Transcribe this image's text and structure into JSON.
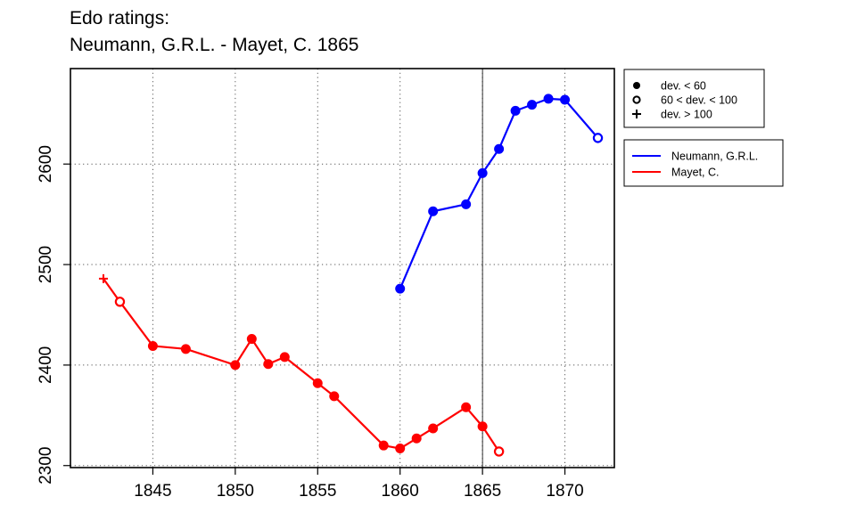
{
  "title_line1": "Edo ratings:",
  "title_line2": "Neumann, G.R.L. - Mayet, C. 1865",
  "chart_data": {
    "type": "line",
    "title": "Edo ratings:\nNeumann, G.R.L. - Mayet, C. 1865",
    "xlabel": "",
    "ylabel": "",
    "xlim": [
      1840,
      1873
    ],
    "ylim": [
      2298,
      2695
    ],
    "x_ticks": [
      1845,
      1850,
      1855,
      1860,
      1865,
      1870
    ],
    "y_ticks": [
      2300,
      2400,
      2500,
      2600
    ],
    "grid": true,
    "vline": 1865,
    "marker_legend": [
      {
        "label": "dev. < 60",
        "marker": "filled-circle"
      },
      {
        "label": "60 < dev. < 100",
        "marker": "open-circle"
      },
      {
        "label": "dev. > 100",
        "marker": "plus"
      }
    ],
    "series": [
      {
        "name": "Neumann, G.R.L.",
        "color": "#0000ff",
        "points": [
          {
            "x": 1860,
            "y": 2476,
            "marker": "filled"
          },
          {
            "x": 1862,
            "y": 2553,
            "marker": "filled"
          },
          {
            "x": 1864,
            "y": 2560,
            "marker": "filled"
          },
          {
            "x": 1865,
            "y": 2591,
            "marker": "filled"
          },
          {
            "x": 1866,
            "y": 2615,
            "marker": "filled"
          },
          {
            "x": 1867,
            "y": 2653,
            "marker": "filled"
          },
          {
            "x": 1868,
            "y": 2659,
            "marker": "filled"
          },
          {
            "x": 1869,
            "y": 2665,
            "marker": "filled"
          },
          {
            "x": 1870,
            "y": 2664,
            "marker": "filled"
          },
          {
            "x": 1872,
            "y": 2626,
            "marker": "open"
          }
        ]
      },
      {
        "name": "Mayet, C.",
        "color": "#ff0000",
        "points": [
          {
            "x": 1842,
            "y": 2486,
            "marker": "plus"
          },
          {
            "x": 1843,
            "y": 2463,
            "marker": "open"
          },
          {
            "x": 1845,
            "y": 2419,
            "marker": "filled"
          },
          {
            "x": 1847,
            "y": 2416,
            "marker": "filled"
          },
          {
            "x": 1850,
            "y": 2400,
            "marker": "filled"
          },
          {
            "x": 1851,
            "y": 2426,
            "marker": "filled"
          },
          {
            "x": 1852,
            "y": 2401,
            "marker": "filled"
          },
          {
            "x": 1853,
            "y": 2408,
            "marker": "filled"
          },
          {
            "x": 1855,
            "y": 2382,
            "marker": "filled"
          },
          {
            "x": 1856,
            "y": 2369,
            "marker": "filled"
          },
          {
            "x": 1859,
            "y": 2320,
            "marker": "filled"
          },
          {
            "x": 1860,
            "y": 2317,
            "marker": "filled"
          },
          {
            "x": 1861,
            "y": 2327,
            "marker": "filled"
          },
          {
            "x": 1862,
            "y": 2337,
            "marker": "filled"
          },
          {
            "x": 1864,
            "y": 2358,
            "marker": "filled"
          },
          {
            "x": 1865,
            "y": 2339,
            "marker": "filled"
          },
          {
            "x": 1866,
            "y": 2314,
            "marker": "open"
          }
        ]
      }
    ]
  }
}
